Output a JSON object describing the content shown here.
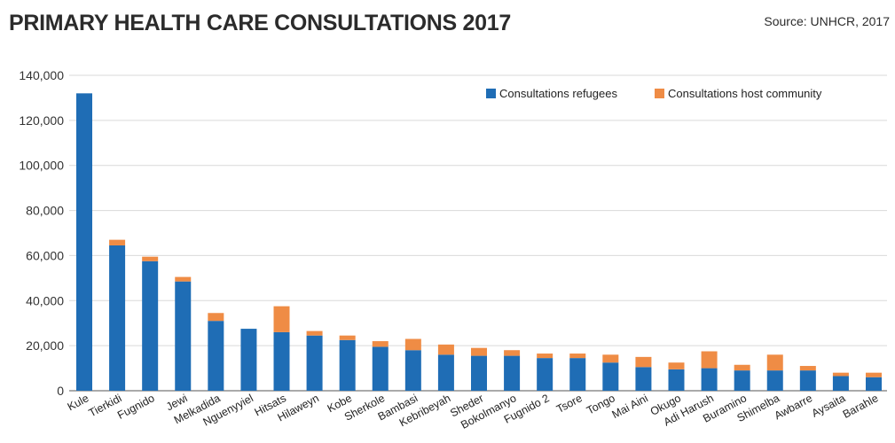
{
  "header": {
    "title": "PRIMARY HEALTH CARE CONSULTATIONS 2017",
    "source": "Source: UNHCR, 2017"
  },
  "colors": {
    "refugees": "#1f6db5",
    "host": "#ef8c45",
    "grid": "#d9d9d9",
    "axis": "#555555"
  },
  "chart_data": {
    "type": "bar",
    "stacked": true,
    "title": "PRIMARY HEALTH CARE CONSULTATIONS 2017",
    "xlabel": "",
    "ylabel": "",
    "ylim": [
      0,
      140000
    ],
    "yticks": [
      0,
      20000,
      40000,
      60000,
      80000,
      100000,
      120000,
      140000
    ],
    "ytick_labels": [
      "0",
      "20,000",
      "40,000",
      "60,000",
      "80,000",
      "100,000",
      "120,000",
      "140,000"
    ],
    "grid": true,
    "legend_position": "top-right",
    "categories": [
      "Kule",
      "Tierkidi",
      "Fugnido",
      "Jewi",
      "Melkadida",
      "Nguenyyiel",
      "Hitsats",
      "Hilaweyn",
      "Kobe",
      "Sherkole",
      "Bambasi",
      "Kebribeyah",
      "Sheder",
      "Bokolmanyo",
      "Fugnido 2",
      "Tsore",
      "Tongo",
      "Mai Aini",
      "Okugo",
      "Adi Harush",
      "Buramino",
      "Shimelba",
      "Awbarre",
      "Aysaita",
      "Barahle"
    ],
    "series": [
      {
        "name": "Consultations refugees",
        "values": [
          132000,
          64500,
          57500,
          48500,
          31000,
          27500,
          26000,
          24500,
          22500,
          19500,
          18000,
          16000,
          15500,
          15500,
          14500,
          14500,
          12500,
          10500,
          9500,
          10000,
          9000,
          9000,
          9000,
          6500,
          6000
        ]
      },
      {
        "name": "Consultations host community",
        "values": [
          0,
          2500,
          2000,
          2000,
          3500,
          0,
          11500,
          2000,
          2000,
          2500,
          5000,
          4500,
          3500,
          2500,
          2000,
          2000,
          3500,
          4500,
          3000,
          7500,
          2500,
          7000,
          2000,
          1500,
          2000
        ]
      }
    ]
  }
}
